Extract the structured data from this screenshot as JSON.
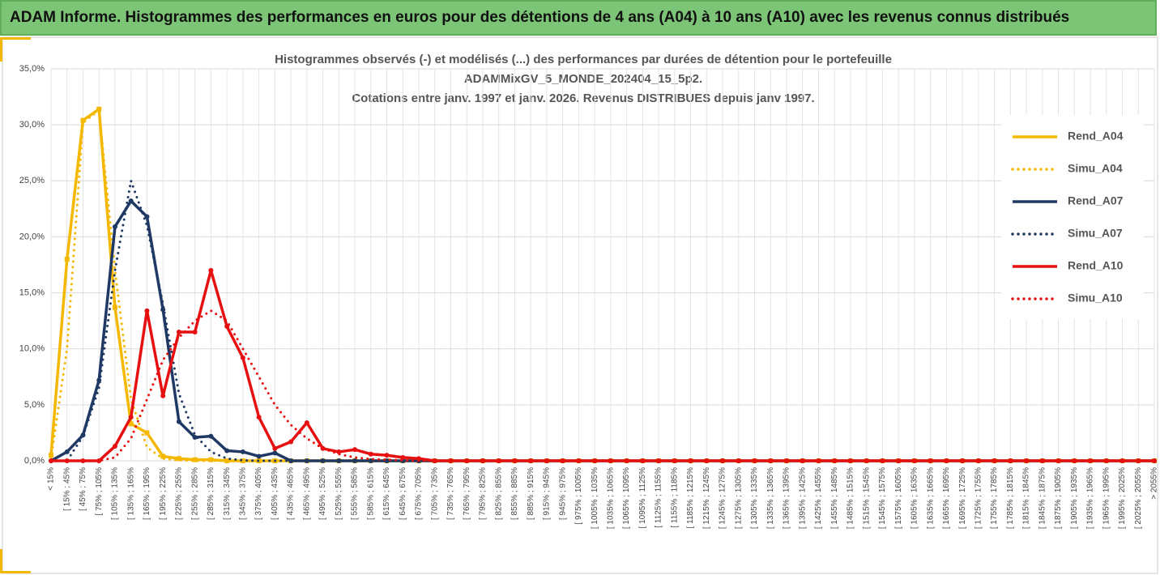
{
  "header": {
    "title": "ADAM Informe. Histogrammes des performances en euros pour des détentions de 4 ans (A04) à 10 ans (A10) avec les revenus connus distribués"
  },
  "chart_data": {
    "type": "line",
    "title_lines": [
      "Histogrammes observés (-) et modélisés (...) des performances par durées de détention pour le portefeuille",
      "ADAMMixGV_5_MONDE_202404_15_5p2.",
      "Cotations entre janv. 1997 et janv. 2026. Revenus DISTRIBUES depuis janv 1997."
    ],
    "categories": [
      "< 15%",
      "[ 15% ; 45%",
      "[ 45% ; 75%",
      "[ 75% ; 105%",
      "[ 105% ; 135%",
      "[ 135% ; 165%",
      "[ 165% ; 195%",
      "[ 195% ; 225%",
      "[ 225% ; 255%",
      "[ 255% ; 285%",
      "[ 285% ; 315%",
      "[ 315% ; 345%",
      "[ 345% ; 375%",
      "[ 375% ; 405%",
      "[ 405% ; 435%",
      "[ 435% ; 465%",
      "[ 465% ; 495%",
      "[ 495% ; 525%",
      "[ 525% ; 555%",
      "[ 555% ; 585%",
      "[ 585% ; 615%",
      "[ 615% ; 645%",
      "[ 645% ; 675%",
      "[ 675% ; 705%",
      "[ 705% ; 735%",
      "[ 735% ; 765%",
      "[ 765% ; 795%",
      "[ 795% ; 825%",
      "[ 825% ; 855%",
      "[ 855% ; 885%",
      "[ 885% ; 915%",
      "[ 915% ; 945%",
      "[ 945% ; 975%",
      "[ 975% ; 1005%",
      "[ 1005% ; 1035%",
      "[ 1035% ; 1065%",
      "[ 1065% ; 1095%",
      "[ 1095% ; 1125%",
      "[ 1125% ; 1155%",
      "[ 1155% ; 1185%",
      "[ 1185% ; 1215%",
      "[ 1215% ; 1245%",
      "[ 1245% ; 1275%",
      "[ 1275% ; 1305%",
      "[ 1305% ; 1335%",
      "[ 1335% ; 1365%",
      "[ 1365% ; 1395%",
      "[ 1395% ; 1425%",
      "[ 1425% ; 1455%",
      "[ 1455% ; 1485%",
      "[ 1485% ; 1515%",
      "[ 1515% ; 1545%",
      "[ 1545% ; 1575%",
      "[ 1575% ; 1605%",
      "[ 1605% ; 1635%",
      "[ 1635% ; 1665%",
      "[ 1665% ; 1695%",
      "[ 1695% ; 1725%",
      "[ 1725% ; 1755%",
      "[ 1755% ; 1785%",
      "[ 1785% ; 1815%",
      "[ 1815% ; 1845%",
      "[ 1845% ; 1875%",
      "[ 1875% ; 1905%",
      "[ 1905% ; 1935%",
      "[ 1935% ; 1965%",
      "[ 1965% ; 1995%",
      "[ 1995% ; 2025%",
      "[ 2025% ; 2055%",
      "> 2055%"
    ],
    "series": [
      {
        "name": "Rend_A04",
        "color": "#f5b800",
        "style": "solid",
        "marker": "square",
        "values": [
          0.5,
          18,
          30.4,
          31.4,
          13.7,
          3.3,
          2.5,
          0.4,
          0.2,
          0.1,
          0.1,
          0,
          0,
          0,
          0,
          0,
          0,
          0,
          0,
          0,
          0,
          0,
          0,
          0,
          0,
          0,
          0,
          0,
          0,
          0,
          0,
          0,
          0,
          0,
          0,
          0,
          0,
          0,
          0,
          0,
          0,
          0,
          0,
          0,
          0,
          0,
          0,
          0,
          0,
          0,
          0,
          0,
          0,
          0,
          0,
          0,
          0,
          0,
          0,
          0,
          0,
          0,
          0,
          0,
          0,
          0,
          0,
          0,
          0,
          0
        ]
      },
      {
        "name": "Simu_A04",
        "color": "#f5b800",
        "style": "dotted",
        "values": [
          0.2,
          10,
          30.2,
          31.3,
          17,
          5.5,
          1.2,
          0.2,
          0.05,
          0,
          0,
          0,
          0,
          0,
          0,
          0,
          0,
          0,
          0,
          0,
          0,
          0,
          0,
          0,
          0,
          0,
          0,
          0,
          0,
          0,
          0,
          0,
          0,
          0,
          0,
          0,
          0,
          0,
          0,
          0,
          0,
          0,
          0,
          0,
          0,
          0,
          0,
          0,
          0,
          0,
          0,
          0,
          0,
          0,
          0,
          0,
          0,
          0,
          0,
          0,
          0,
          0,
          0,
          0,
          0,
          0,
          0,
          0,
          0,
          0
        ]
      },
      {
        "name": "Rend_A07",
        "color": "#1f3864",
        "style": "solid",
        "marker": "circle",
        "values": [
          0,
          0.8,
          2.3,
          7.2,
          20.9,
          23.2,
          21.8,
          13.5,
          3.5,
          2.1,
          2.2,
          0.9,
          0.8,
          0.4,
          0.7,
          0,
          0,
          0,
          0,
          0,
          0,
          0,
          0,
          0,
          0,
          0,
          0,
          0,
          0,
          0,
          0,
          0,
          0,
          0,
          0,
          0,
          0,
          0,
          0,
          0,
          0,
          0,
          0,
          0,
          0,
          0,
          0,
          0,
          0,
          0,
          0,
          0,
          0,
          0,
          0,
          0,
          0,
          0,
          0,
          0,
          0,
          0,
          0,
          0,
          0,
          0,
          0,
          0,
          0,
          0
        ]
      },
      {
        "name": "Simu_A07",
        "color": "#1f3864",
        "style": "dotted",
        "values": [
          0,
          0,
          2.2,
          6.5,
          17,
          25,
          21,
          14,
          6,
          2.3,
          0.8,
          0.2,
          0.05,
          0,
          0,
          0,
          0,
          0,
          0,
          0,
          0,
          0,
          0,
          0,
          0,
          0,
          0,
          0,
          0,
          0,
          0,
          0,
          0,
          0,
          0,
          0,
          0,
          0,
          0,
          0,
          0,
          0,
          0,
          0,
          0,
          0,
          0,
          0,
          0,
          0,
          0,
          0,
          0,
          0,
          0,
          0,
          0,
          0,
          0,
          0,
          0,
          0,
          0,
          0,
          0,
          0,
          0,
          0,
          0,
          0
        ]
      },
      {
        "name": "Rend_A10",
        "color": "#e61010",
        "style": "solid",
        "marker": "circle",
        "values": [
          0,
          0,
          0,
          0,
          1.3,
          3.9,
          13.4,
          5.8,
          11.5,
          11.5,
          17,
          12,
          9.2,
          3.9,
          1.1,
          1.7,
          3.4,
          1.1,
          0.8,
          1.0,
          0.6,
          0.5,
          0.3,
          0.2,
          0,
          0,
          0,
          0,
          0,
          0,
          0,
          0,
          0,
          0,
          0,
          0,
          0,
          0,
          0,
          0,
          0,
          0,
          0,
          0,
          0,
          0,
          0,
          0,
          0,
          0,
          0,
          0,
          0,
          0,
          0,
          0,
          0,
          0,
          0,
          0,
          0,
          0,
          0,
          0,
          0,
          0,
          0,
          0,
          0,
          0
        ]
      },
      {
        "name": "Simu_A10",
        "color": "#e61010",
        "style": "dotted",
        "values": [
          0,
          0,
          0,
          0,
          0.3,
          2,
          5.5,
          9,
          11,
          12.5,
          13.4,
          12.5,
          10,
          7.5,
          5,
          3.2,
          2,
          1.1,
          0.6,
          0.3,
          0.15,
          0.1,
          0.05,
          0,
          0,
          0,
          0,
          0,
          0,
          0,
          0,
          0,
          0,
          0,
          0,
          0,
          0,
          0,
          0,
          0,
          0,
          0,
          0,
          0,
          0,
          0,
          0,
          0,
          0,
          0,
          0,
          0,
          0,
          0,
          0,
          0,
          0,
          0,
          0,
          0,
          0,
          0,
          0,
          0,
          0,
          0,
          0,
          0,
          0,
          0
        ]
      }
    ],
    "ylim": [
      0,
      35
    ],
    "yticks": [
      {
        "value": 0,
        "label": "0,0%"
      },
      {
        "value": 5,
        "label": "5,0%"
      },
      {
        "value": 10,
        "label": "10,0%"
      },
      {
        "value": 15,
        "label": "15,0%"
      },
      {
        "value": 20,
        "label": "20,0%"
      },
      {
        "value": 25,
        "label": "25,0%"
      },
      {
        "value": 30,
        "label": "30,0%"
      },
      {
        "value": 35,
        "label": "35,0%"
      }
    ],
    "grid": true,
    "legend": "right"
  }
}
